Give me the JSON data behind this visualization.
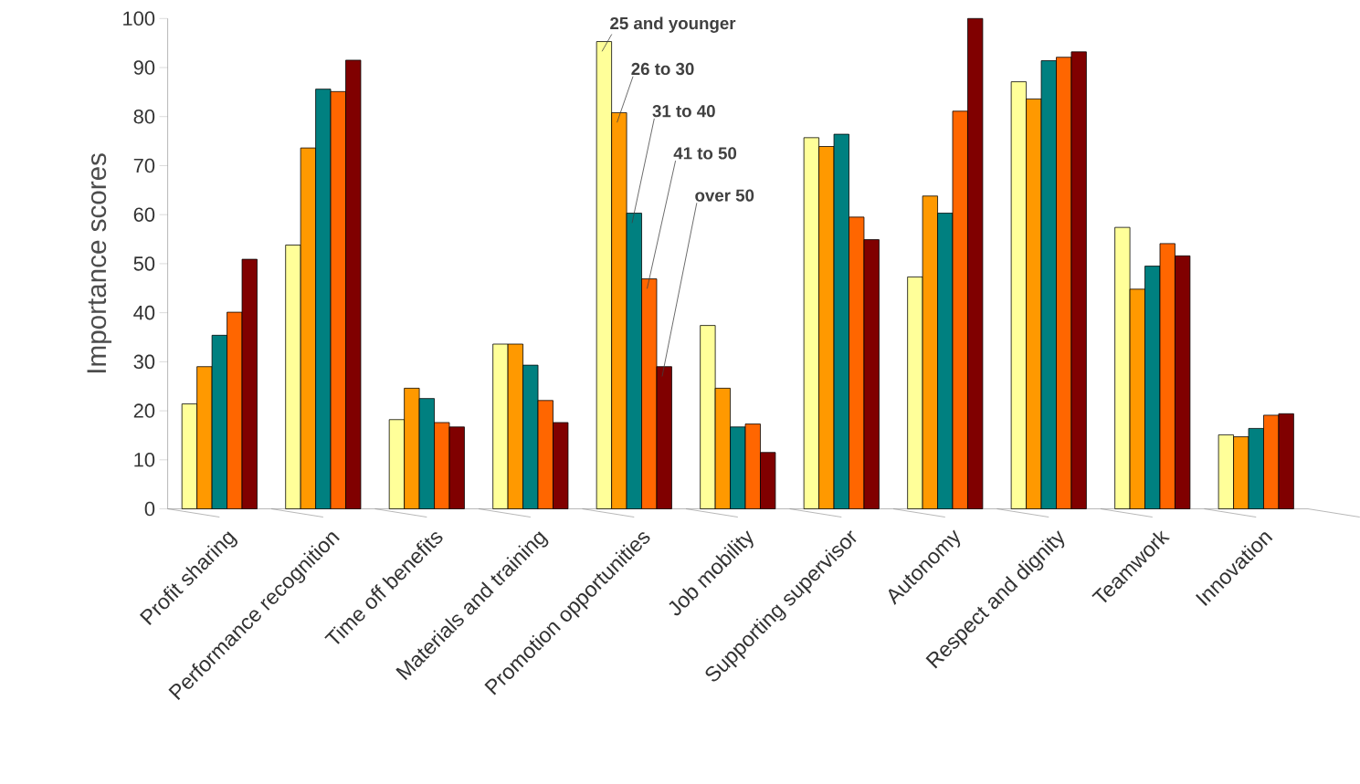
{
  "chart_data": {
    "type": "bar",
    "ylabel": "Importance scores",
    "categories": [
      "Profit sharing",
      "Performance recognition",
      "Time off benefits",
      "Materials and training",
      "Promotion opportunities",
      "Job mobility",
      "Supporting supervisor",
      "Autonomy",
      "Respect and dignity",
      "Teamwork",
      "Innovation"
    ],
    "series": [
      {
        "name": "25 and younger",
        "color": "#ffff99",
        "values": [
          21.4,
          53.8,
          18.2,
          33.6,
          95.3,
          37.4,
          75.7,
          47.3,
          87.1,
          57.4,
          15.1
        ]
      },
      {
        "name": "26 to 30",
        "color": "#ff9900",
        "values": [
          29.0,
          73.6,
          24.6,
          33.6,
          80.8,
          24.6,
          73.9,
          63.8,
          83.6,
          44.8,
          14.7
        ]
      },
      {
        "name": "31 to 40",
        "color": "#008080",
        "values": [
          35.4,
          85.6,
          22.5,
          29.3,
          60.3,
          16.7,
          76.4,
          60.3,
          91.4,
          49.5,
          16.4
        ]
      },
      {
        "name": "41 to 50",
        "color": "#ff6600",
        "values": [
          40.1,
          85.1,
          17.6,
          22.1,
          46.9,
          17.3,
          59.5,
          81.1,
          92.1,
          54.1,
          19.1
        ]
      },
      {
        "name": "over 50",
        "color": "#800000",
        "values": [
          50.9,
          91.5,
          16.7,
          17.6,
          29.0,
          11.5,
          54.9,
          100,
          93.2,
          51.6,
          19.4
        ]
      }
    ],
    "ylim": [
      0,
      100
    ],
    "yticks": [
      0,
      10,
      20,
      30,
      40,
      50,
      60,
      70,
      80,
      90,
      100
    ],
    "grid": false
  }
}
